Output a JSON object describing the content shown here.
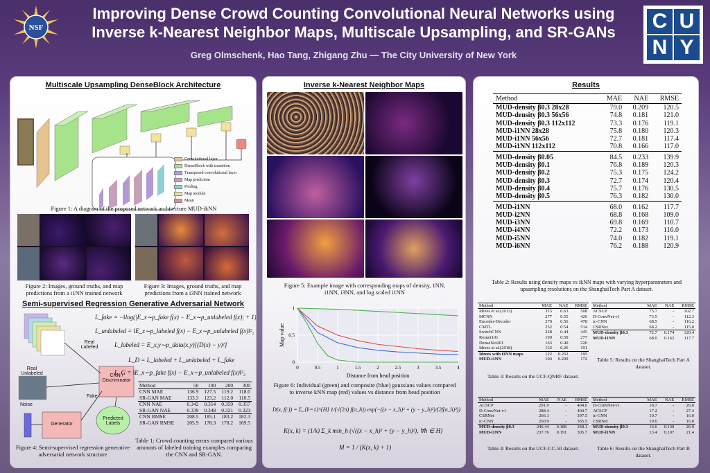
{
  "header": {
    "title_line1": "Improving Dense Crowd Counting Convolutional Neural Networks using",
    "title_line2": "Inverse k-Nearest Neighbor Maps, Multiscale Upsampling, and SR-GANs",
    "authors": "Greg Olmschenk, Hao Tang, Zhigang Zhu — The City University of New York",
    "nsf_label": "NSF",
    "cuny_letters": [
      "C",
      "U",
      "N",
      "Y"
    ]
  },
  "left": {
    "sec1_title": "Multiscale Upsampling DenseBlock Architecture",
    "legend": [
      "Convolutional layer",
      "DenseBlock with transition",
      "Transposed convolutional layer",
      "Map prediction",
      "Pooling",
      "Map module",
      "Mean"
    ],
    "legend_colors": [
      "#e6c48f",
      "#a6e38a",
      "#b39ad6",
      "#c7a1b9",
      "#8fd0d6",
      "#f3e29a",
      "#e88888"
    ],
    "fig1_caption": "Figure 1: A diagram of the proposed network architecture MUD-ikNN",
    "fig2_caption": "Figure 2: Images, ground truths, and map predictions from a i1NN trained network",
    "fig3_caption": "Figure 3: Images, ground truths, and map predictions from a i3NN trained network",
    "sec2_title": "Semi-supervised Regression Generative Adversarial Network",
    "labels": {
      "real_labeled": "Real Labeled",
      "real_unlabeled": "Real Unlabeled",
      "noise": "Noise",
      "fake": "Fake",
      "generator": "Generator",
      "cnn": "CNN / Discriminator",
      "predicted": "Predicted Labels"
    },
    "equations": {
      "fake": "L_fake = −‖log(|E_x∼p_fake f(x) − E_x∼p_unlabeled f(x)| + 1)‖₁",
      "unlabeled": "L_unlabeled = ‖E_x∼p_labeled f(x) − E_x∼p_unlabeled f(x)‖²₂",
      "labeled": "L_labeled = E_x,y∼p_data(x,y)[(D(x) − y)²]",
      "d": "L_D = L_labeled + L_unlabeled + L_fake",
      "g": "L_G = ‖E_x∼p_fake f(x) − E_x∼p_unlabeled f(x)‖²₂"
    },
    "table1": {
      "headers": [
        "Method",
        "50",
        "100",
        "200",
        "300"
      ],
      "groups": [
        [
          [
            "CNN MAE",
            "136.9",
            "127.5",
            "119.2",
            "118.0"
          ],
          [
            "SR-GAN MAE",
            "133.3",
            "123.2",
            "112.0",
            "110.5"
          ]
        ],
        [
          [
            "CNN NAE",
            "0.342",
            "0.354",
            "0.359",
            "0.357"
          ],
          [
            "SR-GAN NAE",
            "0.339",
            "0.348",
            "0.321",
            "0.323"
          ]
        ],
        [
          [
            "CNN RMSE",
            "208.5",
            "185.1",
            "183.2",
            "182.3"
          ],
          [
            "SR-GAN RMSE",
            "205.9",
            "178.3",
            "178.2",
            "169.5"
          ]
        ]
      ]
    },
    "fig4_caption": "Figure 4: Semi-supervised regression generative adversarial network structure",
    "table1_caption": "Table 1: Crowd counting errors compared various amounts of labeled training examples comparing the CNN and SR-GAN."
  },
  "middle": {
    "sec_title": "Inverse k-Nearest Neighbor Maps",
    "fig5_caption": "Figure 5: Example image with corresponding maps of density, 1NN, i1NN, i3NN, and log scaled i1NN",
    "chart_data": {
      "type": "line",
      "xlabel": "Distance from head position",
      "ylabel": "Map value",
      "xlim": [
        0,
        4
      ],
      "ylim": [
        0,
        1
      ],
      "xticks": [
        "0",
        "0.5",
        "1",
        "1.5",
        "2",
        "2.5",
        "3",
        "3.5",
        "4"
      ],
      "yticks": [
        "0",
        "0.5",
        "1"
      ],
      "grid": true,
      "series": [
        {
          "color": "#4caf50",
          "x": [
            0,
            0.5,
            1,
            1.5,
            2,
            2.5,
            3,
            3.5,
            4
          ],
          "values": [
            1.0,
            0.99,
            0.98,
            0.96,
            0.94,
            0.92,
            0.9,
            0.88,
            0.86
          ]
        },
        {
          "color": "#e04848",
          "x": [
            0,
            0.5,
            1,
            1.5,
            2,
            2.5,
            3,
            3.5,
            4
          ],
          "values": [
            1.0,
            0.67,
            0.5,
            0.4,
            0.33,
            0.29,
            0.25,
            0.22,
            0.2
          ]
        },
        {
          "color": "#3a6fd8",
          "x": [
            0,
            0.5,
            1,
            1.5,
            2,
            2.5,
            3,
            3.5,
            4
          ],
          "values": [
            1.0,
            0.55,
            0.36,
            0.27,
            0.22,
            0.19,
            0.17,
            0.15,
            0.14
          ]
        },
        {
          "color": "#4caf50",
          "x": [
            0,
            0.25,
            0.5,
            0.75,
            1,
            1.5,
            2,
            3,
            4
          ],
          "values": [
            1.0,
            0.7,
            0.35,
            0.12,
            0.04,
            0.0,
            0.0,
            0.0,
            0.0
          ]
        }
      ]
    },
    "fig6_caption": "Figure 6: Individual (green) and composite (blue) gaussians values compared to inverse kNN map (red) values vs distance from head position",
    "eq_d": "D(x, f(·)) = Σ_{h=1}^{H} 1/(√(2π) f(σ_h)) exp(−((x − x_h)² + (y − y_h)²)/(2f(σ_h)²))",
    "eq_k": "K(x, k) = (1/k) Σ_k min_h (√((x − x_h)² + (y − y_h)²), ∀h ∈ H)",
    "eq_m": "M = 1 / (K(x, k) + 1)"
  },
  "right": {
    "sec_title": "Results",
    "table2": {
      "headers": [
        "Method",
        "MAE",
        "NAE",
        "RMSE"
      ],
      "groups": [
        [
          [
            "MUD-density β0.3 28x28",
            "79.0",
            "0.209",
            "120.5"
          ],
          [
            "MUD-density β0.3 56x56",
            "74.8",
            "0.181",
            "121.0"
          ],
          [
            "MUD-density β0.3 112x112",
            "73.3",
            "0.176",
            "119.1"
          ],
          [
            "MUD-i1NN 28x28",
            "75.8",
            "0.180",
            "120.3"
          ],
          [
            "MUD-i1NN 56x56",
            "72.7",
            "0.181",
            "117.4"
          ],
          [
            "MUD-i1NN 112x112",
            "70.8",
            "0.166",
            "117.0"
          ]
        ],
        [
          [
            "MUD-density β0.05",
            "84.5",
            "0.233",
            "139.9"
          ],
          [
            "MUD-density β0.1",
            "76.8",
            "0.189",
            "120.3"
          ],
          [
            "MUD-density β0.2",
            "75.3",
            "0.175",
            "124.2"
          ],
          [
            "MUD-density β0.3",
            "72.7",
            "0.174",
            "120.4"
          ],
          [
            "MUD-density β0.4",
            "75.7",
            "0.176",
            "130.5"
          ],
          [
            "MUD-density β0.5",
            "76.3",
            "0.182",
            "130.0"
          ]
        ],
        [
          [
            "MUD-i1NN",
            "68.0",
            "0.162",
            "117.7"
          ],
          [
            "MUD-i2NN",
            "68.8",
            "0.168",
            "109.0"
          ],
          [
            "MUD-i3NN",
            "69.8",
            "0.169",
            "110.7"
          ],
          [
            "MUD-i4NN",
            "72.2",
            "0.173",
            "116.0"
          ],
          [
            "MUD-i5NN",
            "74.0",
            "0.182",
            "119.1"
          ],
          [
            "MUD-i6NN",
            "76.2",
            "0.188",
            "120.9"
          ]
        ]
      ]
    },
    "table2_caption": "Table 2: Results using density maps vs ikNN maps with varying hyperparameters and upsampling resolutions on the ShanghaiTech Part A dataset.",
    "table3": {
      "headers": [
        "Method",
        "MAE",
        "NAE",
        "RMSE"
      ],
      "groups": [
        [
          [
            "Idrees et al.(2013)",
            "315",
            "0.63",
            "508"
          ],
          [
            "MCNN",
            "277",
            "0.55",
            "426"
          ],
          [
            "Encoder-Decoder",
            "270",
            "0.56",
            "478"
          ],
          [
            "CMTL",
            "252",
            "0.54",
            "514"
          ],
          [
            "SwitchCNN",
            "228",
            "0.44",
            "445"
          ],
          [
            "Resnet101",
            "190",
            "0.50",
            "277"
          ],
          [
            "DenseNet201",
            "163",
            "0.40",
            "226"
          ],
          [
            "Idrees et al.(2018)",
            "132",
            "0.26",
            "191"
          ]
        ],
        [
          [
            "Idrees with i1NN maps",
            "122",
            "0.252",
            "195"
          ],
          [
            "MUD-i1NN",
            "104",
            "0.209",
            "172"
          ]
        ]
      ]
    },
    "table3_caption": "Table 3: Results on the UCF-QNRF dataset.",
    "table5": {
      "headers": [
        "Method",
        "MAE",
        "NAE",
        "RMSE"
      ],
      "groups": [
        [
          [
            "ACSCP",
            "75.7",
            "-",
            "102.7"
          ],
          [
            "D-ConvNet-v1",
            "73.5",
            "-",
            "112.3"
          ],
          [
            "ic-CNN",
            "68.5",
            "-",
            "116.2"
          ],
          [
            "CSRNet",
            "68.2",
            "-",
            "115.0"
          ]
        ],
        [
          [
            "MUD-density β0.3",
            "72.7",
            "0.174",
            "120.4"
          ],
          [
            "MUD-i1NN",
            "68.0",
            "0.162",
            "117.7"
          ]
        ]
      ]
    },
    "table5_caption": "Table 5: Results on the ShanghaiTech Part A dataset.",
    "table4": {
      "headers": [
        "Method",
        "MAE",
        "NAE",
        "RMSE"
      ],
      "groups": [
        [
          [
            "ACSCP",
            "291.0",
            "-",
            "404.6"
          ],
          [
            "D-ConvNet-v1",
            "288.4",
            "-",
            "404.7"
          ],
          [
            "CSRNet",
            "266.1",
            "-",
            "397.5"
          ],
          [
            "ic-CNN",
            "260.9",
            "-",
            "365.5"
          ]
        ],
        [
          [
            "MUD-density β0.3",
            "246.44",
            "0.188",
            "348.1"
          ],
          [
            "MUD-i1NN",
            "237.76",
            "0.191",
            "305.7"
          ]
        ]
      ]
    },
    "table4_caption": "Table 4: Results on the UCF-CC-50 dataset.",
    "table6": {
      "headers": [
        "Method",
        "MAE",
        "NAE",
        "RMSE"
      ],
      "groups": [
        [
          [
            "D-ConvNet-v1",
            "18.7",
            "-",
            "26.0"
          ],
          [
            "ACSCP",
            "17.2",
            "-",
            "27.4"
          ],
          [
            "ic-CNN",
            "10.7",
            "-",
            "16.0"
          ],
          [
            "CSRNet",
            "10.6",
            "-",
            "16.0"
          ]
        ],
        [
          [
            "MUD-density β0.3",
            "16.6",
            "0.130",
            "26.9"
          ],
          [
            "MUD-i1NN",
            "13.4",
            "0.107",
            "21.4"
          ]
        ]
      ]
    },
    "table6_caption": "Table 6: Results on the ShanghaiTech Part B dataset."
  }
}
